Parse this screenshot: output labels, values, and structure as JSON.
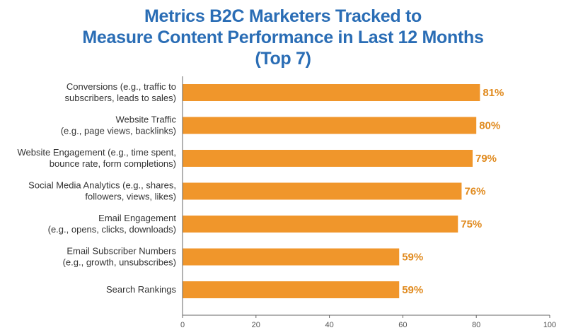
{
  "title_lines": [
    "Metrics B2C Marketers Tracked to",
    "Measure Content Performance in Last 12 Months",
    "(Top 7)"
  ],
  "colors": {
    "title": "#2a6db5",
    "bar": "#f0962b",
    "value_label": "#e08a1e",
    "axis": "#666666"
  },
  "chart_data": {
    "type": "bar",
    "orientation": "horizontal",
    "categories": [
      [
        "Conversions (e.g., traffic to",
        "subscribers, leads to sales)"
      ],
      [
        "Website Traffic",
        "(e.g., page views, backlinks)"
      ],
      [
        "Website Engagement (e.g., time spent,",
        "bounce rate, form completions)"
      ],
      [
        "Social Media Analytics (e.g., shares,",
        "followers, views, likes)"
      ],
      [
        "Email Engagement",
        "(e.g., opens, clicks, downloads)"
      ],
      [
        "Email Subscriber Numbers",
        "(e.g., growth, unsubscribes)"
      ],
      [
        "Search Rankings"
      ]
    ],
    "values": [
      81,
      80,
      79,
      76,
      75,
      59,
      59
    ],
    "value_labels": [
      "81%",
      "80%",
      "79%",
      "76%",
      "75%",
      "59%",
      "59%"
    ],
    "xlim": [
      0,
      100
    ],
    "xticks": [
      0,
      20,
      40,
      60,
      80,
      100
    ],
    "xtick_labels": [
      "0",
      "20",
      "40",
      "60",
      "80",
      "100"
    ],
    "grid": false,
    "legend": "none"
  }
}
